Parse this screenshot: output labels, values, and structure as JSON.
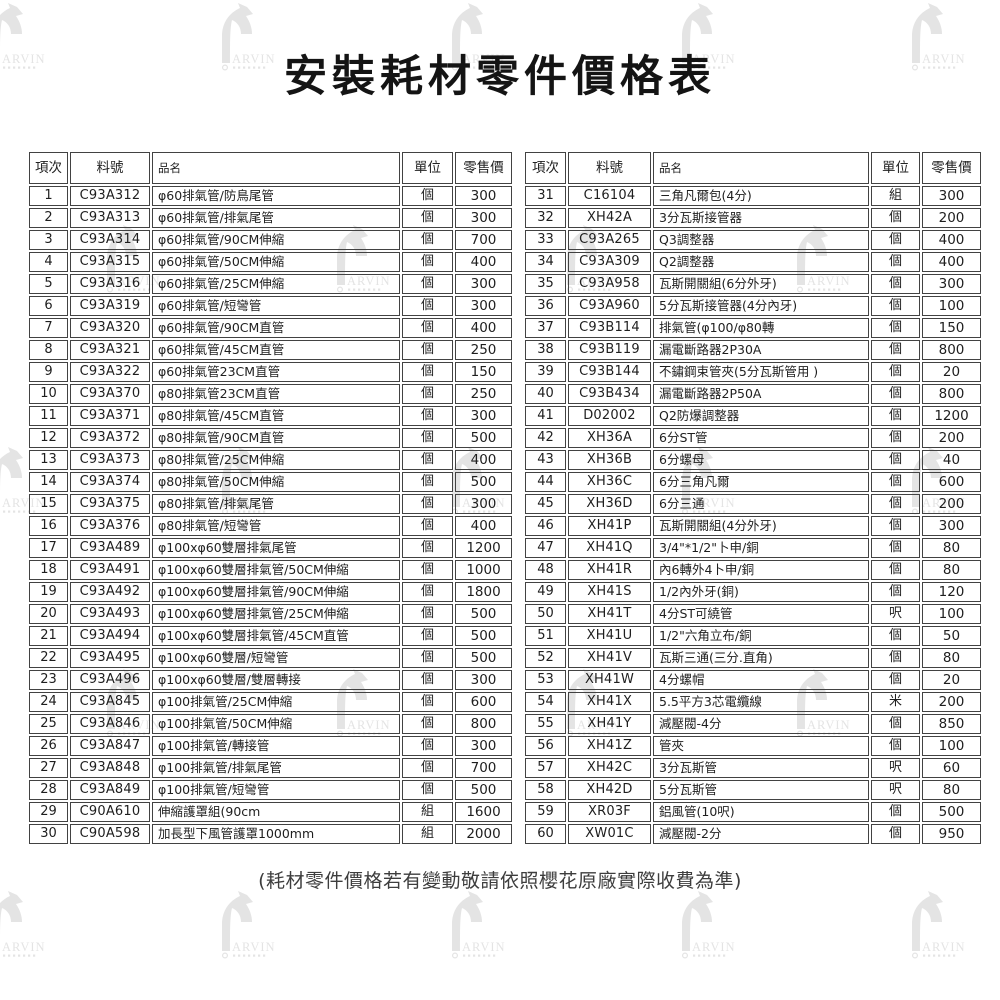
{
  "title": "安裝耗材零件價格表",
  "footer_note": "(耗材零件價格若有變動敬請依照櫻花原廠實際收費為準)",
  "watermark": {
    "text": "ARVIN",
    "color": "#e4e4e4"
  },
  "columns": {
    "item": "項次",
    "part_no": "料號",
    "name": "品名",
    "unit": "單位",
    "price": "零售價"
  },
  "tables": [
    {
      "rows": [
        {
          "item": "1",
          "part_no": "C93A312",
          "name": "φ60排氣管/防鳥尾管",
          "unit": "個",
          "price": "300"
        },
        {
          "item": "2",
          "part_no": "C93A313",
          "name": "φ60排氣管/排氣尾管",
          "unit": "個",
          "price": "300"
        },
        {
          "item": "3",
          "part_no": "C93A314",
          "name": "φ60排氣管/90CM伸縮",
          "unit": "個",
          "price": "700"
        },
        {
          "item": "4",
          "part_no": "C93A315",
          "name": "φ60排氣管/50CM伸縮",
          "unit": "個",
          "price": "400"
        },
        {
          "item": "5",
          "part_no": "C93A316",
          "name": "φ60排氣管/25CM伸縮",
          "unit": "個",
          "price": "300"
        },
        {
          "item": "6",
          "part_no": "C93A319",
          "name": "φ60排氣管/短彎管",
          "unit": "個",
          "price": "300"
        },
        {
          "item": "7",
          "part_no": "C93A320",
          "name": "φ60排氣管/90CM直管",
          "unit": "個",
          "price": "400"
        },
        {
          "item": "8",
          "part_no": "C93A321",
          "name": "φ60排氣管/45CM直管",
          "unit": "個",
          "price": "250"
        },
        {
          "item": "9",
          "part_no": "C93A322",
          "name": "φ60排氣管23CM直管",
          "unit": "個",
          "price": "150"
        },
        {
          "item": "10",
          "part_no": "C93A370",
          "name": "φ80排氣管23CM直管",
          "unit": "個",
          "price": "250"
        },
        {
          "item": "11",
          "part_no": "C93A371",
          "name": "φ80排氣管/45CM直管",
          "unit": "個",
          "price": "300"
        },
        {
          "item": "12",
          "part_no": "C93A372",
          "name": "φ80排氣管/90CM直管",
          "unit": "個",
          "price": "500"
        },
        {
          "item": "13",
          "part_no": "C93A373",
          "name": "φ80排氣管/25CM伸縮",
          "unit": "個",
          "price": "400"
        },
        {
          "item": "14",
          "part_no": "C93A374",
          "name": "φ80排氣管/50CM伸縮",
          "unit": "個",
          "price": "500"
        },
        {
          "item": "15",
          "part_no": "C93A375",
          "name": "φ80排氣管/排氣尾管",
          "unit": "個",
          "price": "300"
        },
        {
          "item": "16",
          "part_no": "C93A376",
          "name": "φ80排氣管/短彎管",
          "unit": "個",
          "price": "400"
        },
        {
          "item": "17",
          "part_no": "C93A489",
          "name": "φ100xφ60雙層排氣尾管",
          "unit": "個",
          "price": "1200"
        },
        {
          "item": "18",
          "part_no": "C93A491",
          "name": "φ100xφ60雙層排氣管/50CM伸縮",
          "unit": "個",
          "price": "1000"
        },
        {
          "item": "19",
          "part_no": "C93A492",
          "name": "φ100xφ60雙層排氣管/90CM伸縮",
          "unit": "個",
          "price": "1800"
        },
        {
          "item": "20",
          "part_no": "C93A493",
          "name": "φ100xφ60雙層排氣管/25CM伸縮",
          "unit": "個",
          "price": "500"
        },
        {
          "item": "21",
          "part_no": "C93A494",
          "name": "φ100xφ60雙層排氣管/45CM直管",
          "unit": "個",
          "price": "500"
        },
        {
          "item": "22",
          "part_no": "C93A495",
          "name": "φ100xφ60雙層/短彎管",
          "unit": "個",
          "price": "500"
        },
        {
          "item": "23",
          "part_no": "C93A496",
          "name": "φ100xφ60雙層/雙層轉接",
          "unit": "個",
          "price": "300"
        },
        {
          "item": "24",
          "part_no": "C93A845",
          "name": "φ100排氣管/25CM伸縮",
          "unit": "個",
          "price": "600"
        },
        {
          "item": "25",
          "part_no": "C93A846",
          "name": "φ100排氣管/50CM伸縮",
          "unit": "個",
          "price": "800"
        },
        {
          "item": "26",
          "part_no": "C93A847",
          "name": "φ100排氣管/轉接管",
          "unit": "個",
          "price": "300"
        },
        {
          "item": "27",
          "part_no": "C93A848",
          "name": "φ100排氣管/排氣尾管",
          "unit": "個",
          "price": "700"
        },
        {
          "item": "28",
          "part_no": "C93A849",
          "name": "φ100排氣管/短彎管",
          "unit": "個",
          "price": "500"
        },
        {
          "item": "29",
          "part_no": "C90A610",
          "name": "伸縮護罩組(90cm",
          "unit": "組",
          "price": "1600"
        },
        {
          "item": "30",
          "part_no": "C90A598",
          "name": "加長型下風管護罩1000mm",
          "unit": "組",
          "price": "2000"
        }
      ]
    },
    {
      "rows": [
        {
          "item": "31",
          "part_no": "C16104",
          "name": "三角凡爾包(4分)",
          "unit": "組",
          "price": "300"
        },
        {
          "item": "32",
          "part_no": "XH42A",
          "name": "3分瓦斯接管器",
          "unit": "個",
          "price": "200"
        },
        {
          "item": "33",
          "part_no": "C93A265",
          "name": "Q3調整器",
          "unit": "個",
          "price": "400"
        },
        {
          "item": "34",
          "part_no": "C93A309",
          "name": "Q2調整器",
          "unit": "個",
          "price": "400"
        },
        {
          "item": "35",
          "part_no": "C93A958",
          "name": "瓦斯開關組(6分外牙)",
          "unit": "個",
          "price": "300"
        },
        {
          "item": "36",
          "part_no": "C93A960",
          "name": "5分瓦斯接管器(4分內牙)",
          "unit": "個",
          "price": "100"
        },
        {
          "item": "37",
          "part_no": "C93B114",
          "name": "排氣管(φ100/φ80轉",
          "unit": "個",
          "price": "150"
        },
        {
          "item": "38",
          "part_no": "C93B119",
          "name": "漏電斷路器2P30A",
          "unit": "個",
          "price": "800"
        },
        {
          "item": "39",
          "part_no": "C93B144",
          "name": "不鏽鋼束管夾(5分瓦斯管用 )",
          "unit": "個",
          "price": "20"
        },
        {
          "item": "40",
          "part_no": "C93B434",
          "name": "漏電斷路器2P50A",
          "unit": "個",
          "price": "800"
        },
        {
          "item": "41",
          "part_no": "D02002",
          "name": "Q2防爆調整器",
          "unit": "個",
          "price": "1200"
        },
        {
          "item": "42",
          "part_no": "XH36A",
          "name": "6分ST管",
          "unit": "個",
          "price": "200"
        },
        {
          "item": "43",
          "part_no": "XH36B",
          "name": "6分螺母",
          "unit": "個",
          "price": "40"
        },
        {
          "item": "44",
          "part_no": "XH36C",
          "name": "6分三角凡爾",
          "unit": "個",
          "price": "600"
        },
        {
          "item": "45",
          "part_no": "XH36D",
          "name": "6分三通",
          "unit": "個",
          "price": "200"
        },
        {
          "item": "46",
          "part_no": "XH41P",
          "name": "瓦斯開關組(4分外牙)",
          "unit": "個",
          "price": "300"
        },
        {
          "item": "47",
          "part_no": "XH41Q",
          "name": "3/4\"*1/2\"卜申/銅",
          "unit": "個",
          "price": "80"
        },
        {
          "item": "48",
          "part_no": "XH41R",
          "name": "內6轉外4卜申/銅",
          "unit": "個",
          "price": "80"
        },
        {
          "item": "49",
          "part_no": "XH41S",
          "name": "1/2內外牙(銅)",
          "unit": "個",
          "price": "120"
        },
        {
          "item": "50",
          "part_no": "XH41T",
          "name": "4分ST可繞管",
          "unit": "呎",
          "price": "100"
        },
        {
          "item": "51",
          "part_no": "XH41U",
          "name": "1/2\"六角立布/銅",
          "unit": "個",
          "price": "50"
        },
        {
          "item": "52",
          "part_no": "XH41V",
          "name": "瓦斯三通(三分.直角)",
          "unit": "個",
          "price": "80"
        },
        {
          "item": "53",
          "part_no": "XH41W",
          "name": "4分螺帽",
          "unit": "個",
          "price": "20"
        },
        {
          "item": "54",
          "part_no": "XH41X",
          "name": "5.5平方3芯電纜線",
          "unit": "米",
          "price": "200"
        },
        {
          "item": "55",
          "part_no": "XH41Y",
          "name": "減壓閥-4分",
          "unit": "個",
          "price": "850"
        },
        {
          "item": "56",
          "part_no": "XH41Z",
          "name": "管夾",
          "unit": "個",
          "price": "100"
        },
        {
          "item": "57",
          "part_no": "XH42C",
          "name": "3分瓦斯管",
          "unit": "呎",
          "price": "60"
        },
        {
          "item": "58",
          "part_no": "XH42D",
          "name": "5分瓦斯管",
          "unit": "呎",
          "price": "80"
        },
        {
          "item": "59",
          "part_no": "XR03F",
          "name": "鋁風管(10呎)",
          "unit": "個",
          "price": "500"
        },
        {
          "item": "60",
          "part_no": "XW01C",
          "name": "減壓閥-2分",
          "unit": "個",
          "price": "950"
        }
      ]
    }
  ]
}
